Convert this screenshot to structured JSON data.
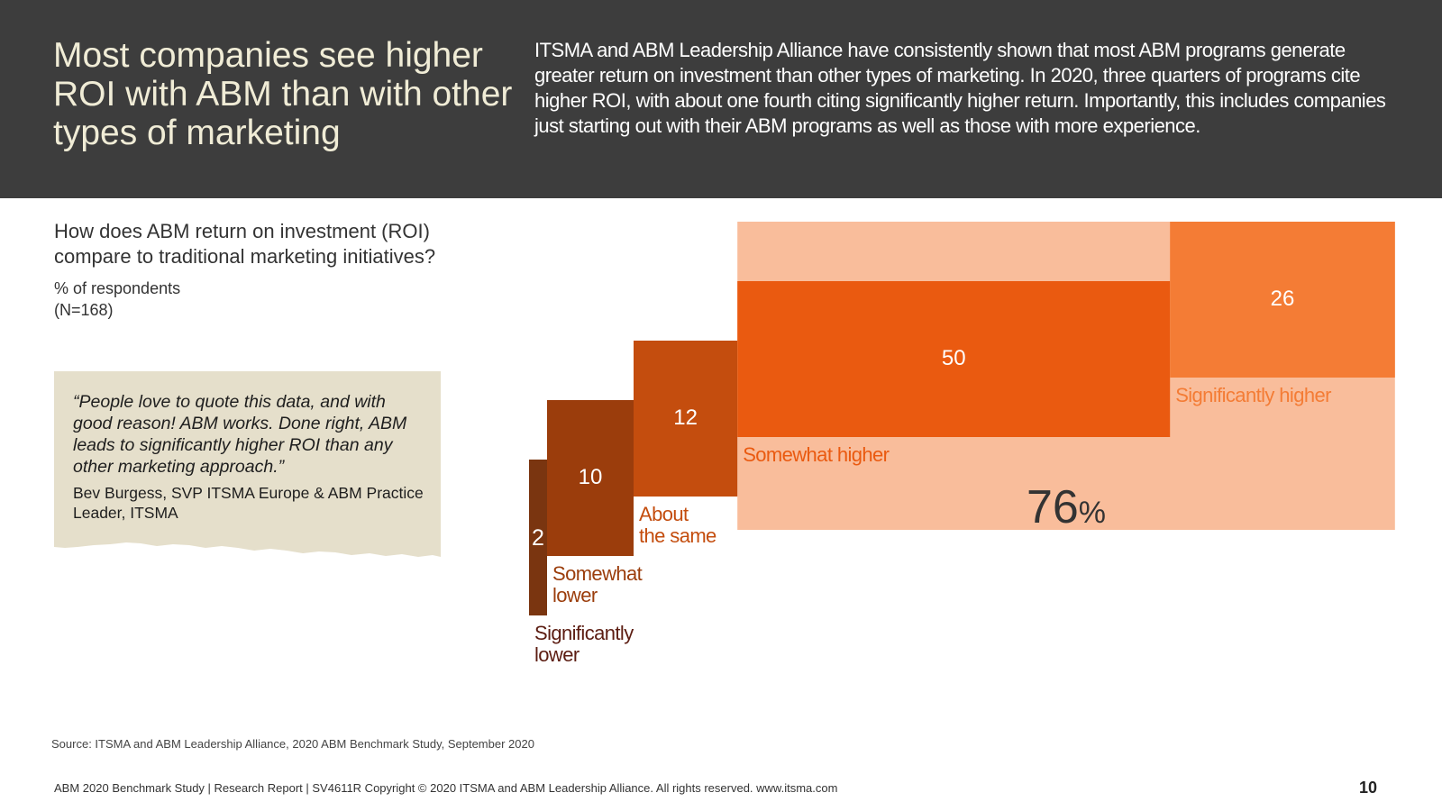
{
  "header": {
    "title": "Most companies see higher ROI with ABM than with other types of marketing",
    "intro": "ITSMA and ABM Leadership Alliance have consistently shown that most ABM programs generate greater return on investment than other types of marketing. In 2020, three quarters of programs cite higher ROI, with about one fourth citing significantly higher return. Importantly, this includes companies just starting out with their ABM programs as well as those with more experience."
  },
  "question": "How does ABM return on investment (ROI) compare to traditional marketing initiatives?",
  "unit_label": "% of respondents",
  "sample_label": "(N=168)",
  "quote": {
    "text": "“People love to quote this data, and with good reason! ABM works. Done right, ABM leads to significantly higher ROI than any other marketing approach.”",
    "author": "Bev Burgess, SVP ITSMA Europe & ABM Practice Leader, ITSMA"
  },
  "chart_data": {
    "type": "bar",
    "categories": [
      "Significantly lower",
      "Somewhat lower",
      "About the same",
      "Somewhat higher",
      "Significantly higher"
    ],
    "values": [
      2,
      10,
      12,
      50,
      26
    ],
    "colors": [
      "#7a3510",
      "#9b3d0c",
      "#c44d0e",
      "#ea5a10",
      "#f47c35"
    ],
    "label_colors": [
      "#5c1d12",
      "#9b3d0c",
      "#c44d0e",
      "#ea5a10",
      "#f47c35"
    ],
    "total": {
      "value": "76",
      "unit": "%",
      "color": "#f9bd9b"
    }
  },
  "source": "Source: ITSMA and ABM Leadership Alliance, 2020 ABM Benchmark Study, September 2020",
  "footer": "ABM 2020 Benchmark Study | Research Report | SV4611R Copyright © 2020 ITSMA and ABM Leadership Alliance. All rights reserved. www.itsma.com",
  "page_number": "10"
}
